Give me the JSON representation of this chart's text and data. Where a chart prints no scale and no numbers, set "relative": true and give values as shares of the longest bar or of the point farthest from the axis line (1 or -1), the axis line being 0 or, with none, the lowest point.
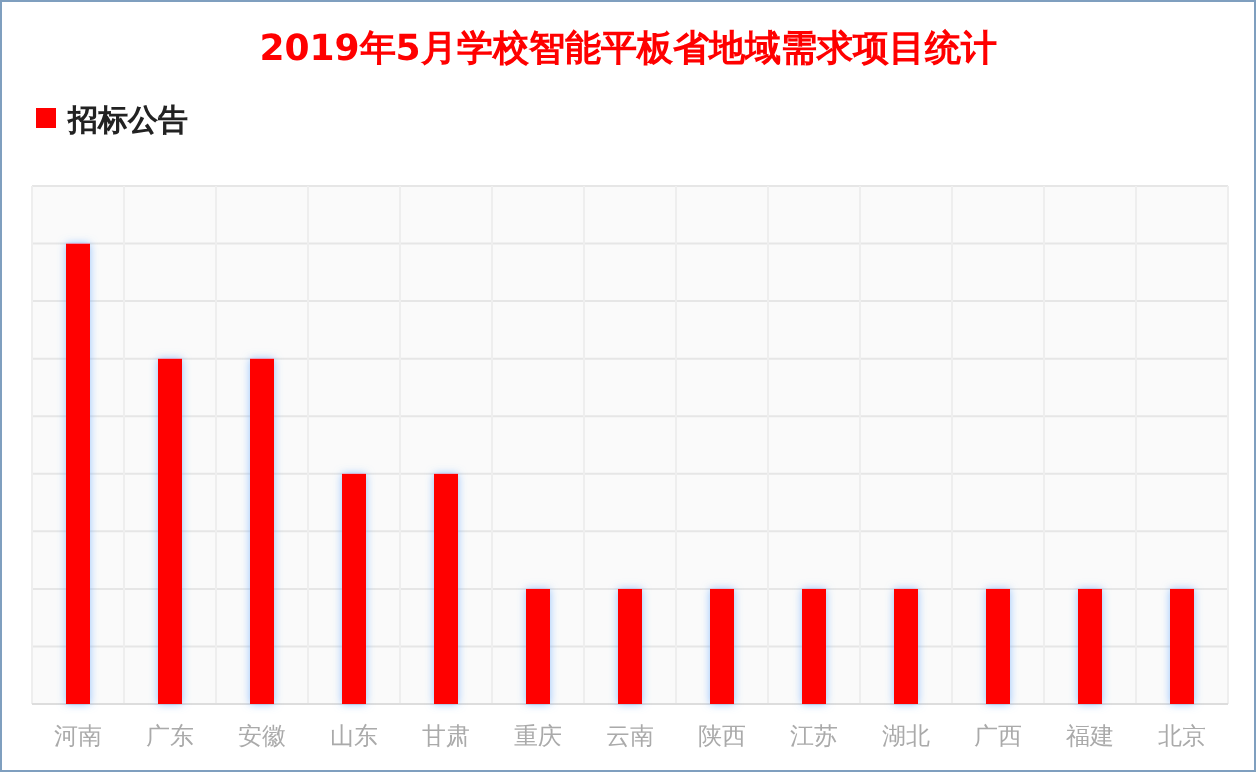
{
  "chart_data": {
    "type": "bar",
    "title": "2019年5月学校智能平板省地域需求项目统计",
    "categories": [
      "河南",
      "广东",
      "安徽",
      "山东",
      "甘肃",
      "重庆",
      "云南",
      "陕西",
      "江苏",
      "湖北",
      "广西",
      "福建",
      "北京"
    ],
    "series": [
      {
        "name": "招标公告",
        "color": "#ff0000",
        "values": [
          1,
          0.75,
          0.75,
          0.5,
          0.5,
          0.25,
          0.25,
          0.25,
          0.25,
          0.25,
          0.25,
          0.25,
          0.25
        ]
      }
    ],
    "relative": true,
    "grid": true,
    "legend": "top left"
  }
}
